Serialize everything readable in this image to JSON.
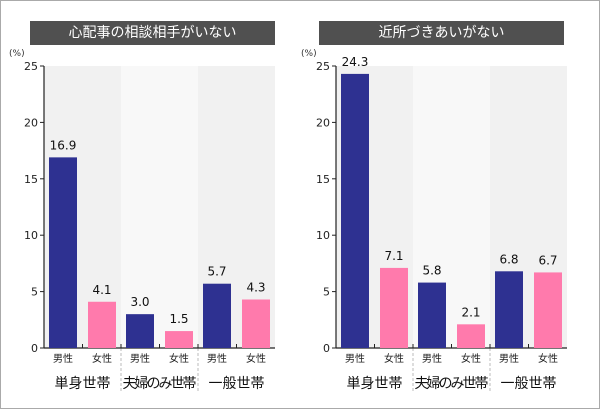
{
  "unit_label": "(%)",
  "colors": {
    "male": "#2e3191",
    "female": "#ff7aac",
    "band_a": "#f1f1f1",
    "band_b": "#f8f8f8",
    "title_bg": "#505050"
  },
  "chart_data": [
    {
      "type": "bar",
      "title": "心配事の相談相手がいない",
      "ylabel": "(%)",
      "ylim": [
        0,
        25
      ],
      "yticks": [
        0,
        5,
        10,
        15,
        20,
        25
      ],
      "categories": [
        "単身世帯",
        "夫婦のみ世帯",
        "一般世帯"
      ],
      "sub_categories": [
        "男性",
        "女性"
      ],
      "series": [
        {
          "name": "男性",
          "values": [
            16.9,
            3.0,
            5.7
          ]
        },
        {
          "name": "女性",
          "values": [
            4.1,
            1.5,
            4.3
          ]
        }
      ],
      "labels": [
        [
          "16.9",
          "4.1"
        ],
        [
          "3.0",
          "1.5"
        ],
        [
          "5.7",
          "4.3"
        ]
      ]
    },
    {
      "type": "bar",
      "title": "近所づきあいがない",
      "ylabel": "(%)",
      "ylim": [
        0,
        25
      ],
      "yticks": [
        0,
        5,
        10,
        15,
        20,
        25
      ],
      "categories": [
        "単身世帯",
        "夫婦のみ世帯",
        "一般世帯"
      ],
      "sub_categories": [
        "男性",
        "女性"
      ],
      "series": [
        {
          "name": "男性",
          "values": [
            24.3,
            5.8,
            6.8
          ]
        },
        {
          "name": "女性",
          "values": [
            7.1,
            2.1,
            6.7
          ]
        }
      ],
      "labels": [
        [
          "24.3",
          "7.1"
        ],
        [
          "5.8",
          "2.1"
        ],
        [
          "6.8",
          "6.7"
        ]
      ]
    }
  ]
}
